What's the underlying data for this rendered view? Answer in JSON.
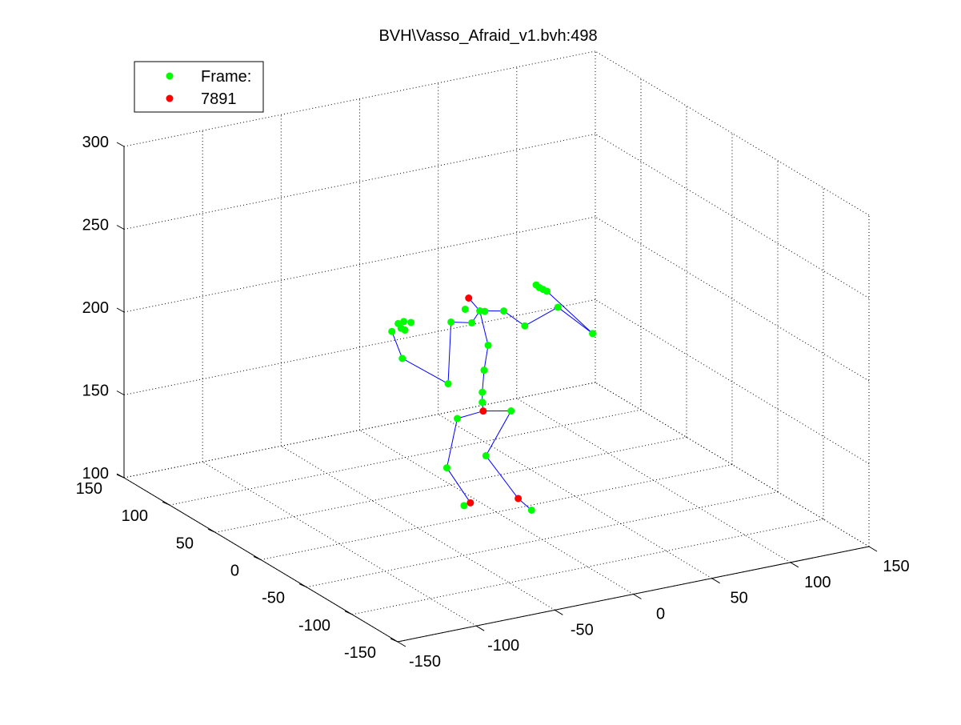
{
  "window": {
    "background": "#ffffff"
  },
  "chart_data": {
    "type": "scatter",
    "title": "BVH\\Vasso_Afraid_v1.bvh:498",
    "xlabel": "",
    "ylabel": "",
    "zlabel": "",
    "xlim": [
      -150,
      150
    ],
    "ylim": [
      -150,
      150
    ],
    "zlim": [
      100,
      300
    ],
    "xticks": [
      "-150",
      "-100",
      "-50",
      "0",
      "50",
      "100",
      "150"
    ],
    "yticks": [
      "-150",
      "-100",
      "-50",
      "0",
      "50",
      "100",
      "150"
    ],
    "zticks": [
      "100",
      "150",
      "200",
      "250",
      "300"
    ],
    "grid": true,
    "legend": {
      "placement": "top-left",
      "entries": [
        {
          "label": "Frame:",
          "color": "#00ff00",
          "marker": "circle"
        },
        {
          "label": "7891",
          "color": "#ff0000",
          "marker": "circle"
        }
      ]
    },
    "bone_color": "#0000ff",
    "series": [
      {
        "color": "#00ff00",
        "marker": "circle",
        "points": [
          {
            "x": -55,
            "y": 20,
            "z": 213
          },
          {
            "x": -51,
            "y": 20,
            "z": 217
          },
          {
            "x": -48,
            "y": 19,
            "z": 218
          },
          {
            "x": -44,
            "y": 18,
            "z": 217
          },
          {
            "x": -52,
            "y": 15,
            "z": 216
          },
          {
            "x": -49,
            "y": 16,
            "z": 214
          },
          {
            "x": -53,
            "y": 12,
            "z": 199
          },
          {
            "x": -25,
            "y": 10,
            "z": 179
          },
          {
            "x": -14,
            "y": 3,
            "z": 216
          },
          {
            "x": -22,
            "y": 12,
            "z": 215
          },
          {
            "x": -13,
            "y": 12,
            "z": 221
          },
          {
            "x": -6,
            "y": 8,
            "z": 220
          },
          {
            "x": -4,
            "y": 6,
            "z": 220
          },
          {
            "x": 4,
            "y": -1,
            "z": 221
          },
          {
            "x": 18,
            "y": 0,
            "z": 209
          },
          {
            "x": 27,
            "y": 3,
            "z": 231
          },
          {
            "x": 29,
            "y": 3,
            "z": 229
          },
          {
            "x": 32,
            "y": 4,
            "z": 227
          },
          {
            "x": 35,
            "y": 5,
            "z": 225
          },
          {
            "x": 42,
            "y": 5,
            "z": 214
          },
          {
            "x": 60,
            "y": -2,
            "z": 197
          },
          {
            "x": -3,
            "y": 4,
            "z": 200
          },
          {
            "x": -5,
            "y": 5,
            "z": 185
          },
          {
            "x": -5,
            "y": 7,
            "z": 171
          },
          {
            "x": -5,
            "y": 7,
            "z": 165
          },
          {
            "x": 11,
            "y": 3,
            "z": 158
          },
          {
            "x": -18,
            "y": 12,
            "z": 156
          },
          {
            "x": -5,
            "y": 3,
            "z": 134
          },
          {
            "x": -20,
            "y": 20,
            "z": 124
          },
          {
            "x": 13,
            "y": -16,
            "z": 104
          },
          {
            "x": -5,
            "y": 27,
            "z": 96
          }
        ]
      },
      {
        "color": "#ff0000",
        "marker": "circle",
        "points": [
          {
            "x": -9,
            "y": 15,
            "z": 226
          },
          {
            "x": -5,
            "y": 6,
            "z": 160
          },
          {
            "x": 8,
            "y": -10,
            "z": 110
          },
          {
            "x": -5,
            "y": 20,
            "z": 100
          }
        ]
      }
    ]
  }
}
